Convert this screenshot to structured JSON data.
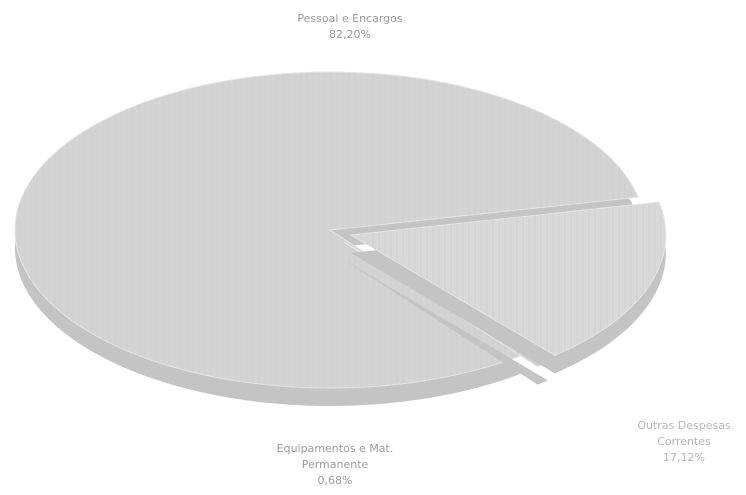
{
  "chart_data": {
    "type": "pie",
    "title": "",
    "slices": [
      {
        "name": "Pessoal e Encargos",
        "value": 82.2,
        "display": "82,20%",
        "color": "#d4d4d4"
      },
      {
        "name": "Outras Despesas Correntes",
        "value": 17.12,
        "display": "17,12%",
        "color": "#d9d9d9"
      },
      {
        "name": "Equipamentos e Mat. Permanente",
        "value": 0.68,
        "display": "0,68%",
        "color": "#d0d0d0"
      }
    ],
    "labels": {
      "pessoal": {
        "line1": "Pessoal e Encargos",
        "value": "82,20%"
      },
      "outras": {
        "line1": "Outras Despesas",
        "line2": "Correntes",
        "value": "17,12%"
      },
      "equip": {
        "line1": "Equipamentos e Mat.",
        "line2": "Permanente",
        "value": "0,68%"
      }
    },
    "style": "3d-exploded"
  }
}
